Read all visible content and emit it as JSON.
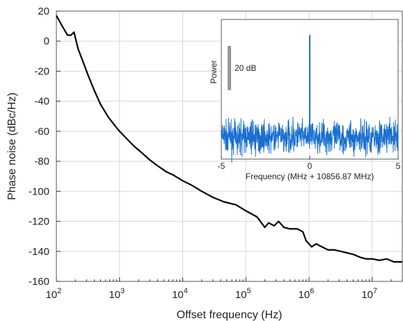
{
  "chart_data": [
    {
      "type": "line",
      "xlabel": "Offset frequency (Hz)",
      "ylabel": "Phase noise (dBc/Hz)",
      "x_scale": "log",
      "xlim": [
        100,
        30000000
      ],
      "ylim": [
        -160,
        20
      ],
      "x_ticks": [
        {
          "base": "10",
          "exp": "2",
          "value": 100
        },
        {
          "base": "10",
          "exp": "3",
          "value": 1000
        },
        {
          "base": "10",
          "exp": "4",
          "value": 10000
        },
        {
          "base": "10",
          "exp": "5",
          "value": 100000
        },
        {
          "base": "10",
          "exp": "6",
          "value": 1000000
        },
        {
          "base": "10",
          "exp": "7",
          "value": 10000000
        }
      ],
      "y_ticks": [
        "20",
        "0",
        "-20",
        "-40",
        "-60",
        "-80",
        "-100",
        "-120",
        "-140",
        "-160"
      ],
      "grid": true,
      "line_color": "#000000",
      "series": [
        {
          "x": [
            100,
            120,
            150,
            170,
            190,
            220,
            260,
            320,
            400,
            500,
            650,
            800,
            1000,
            1300,
            1700,
            2200,
            3000,
            4000,
            5500,
            7000,
            10000,
            14000,
            20000,
            30000,
            45000,
            70000,
            100000,
            150000,
            200000,
            230000,
            280000,
            330000,
            400000,
            500000,
            650000,
            800000,
            900000,
            1000000,
            1100000,
            1300000,
            1600000,
            2000000,
            2500000,
            3200000,
            4000000,
            5000000,
            6500000,
            8000000,
            10000000,
            13000000,
            17000000,
            22000000,
            26000000,
            30000000
          ],
          "y": [
            17,
            11,
            4,
            4,
            6,
            -5,
            -13,
            -23,
            -33,
            -42,
            -50,
            -55,
            -60,
            -65,
            -70,
            -74,
            -79,
            -83,
            -87,
            -89,
            -93,
            -96,
            -100,
            -104,
            -107,
            -109,
            -113,
            -117,
            -124,
            -121,
            -123,
            -120,
            -124,
            -125,
            -125,
            -127,
            -133,
            -135,
            -137,
            -135,
            -137,
            -139,
            -139,
            -140,
            -141,
            -142,
            -144,
            -145,
            -145,
            -146,
            -145,
            -147,
            -147,
            -147
          ]
        }
      ]
    },
    {
      "type": "line",
      "xlabel": "Frequency (MHz + 10856.87 MHz)",
      "ylabel": "Power",
      "xlim": [
        -5,
        5
      ],
      "x_ticks": [
        "-5",
        "0",
        "5"
      ],
      "scale_bar_label": "20 dB",
      "line_color": "#1a6fd0",
      "noise_floor": -48,
      "noise_std": 3.5,
      "peak": {
        "x": 0,
        "y": -2
      },
      "ylim": [
        -58,
        5
      ]
    }
  ]
}
